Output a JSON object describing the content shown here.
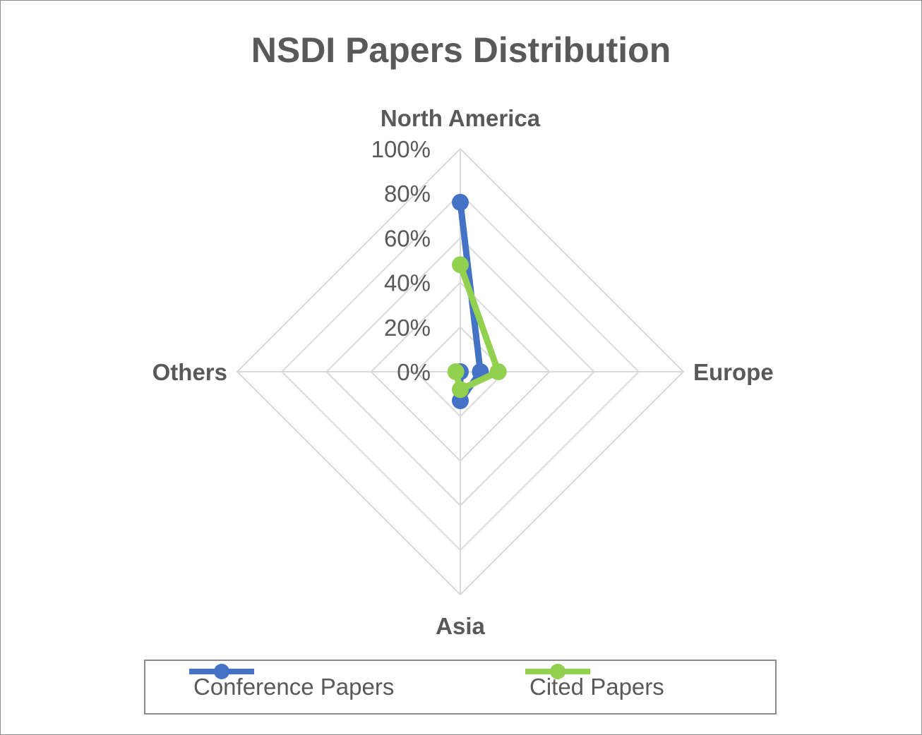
{
  "chart_data": {
    "type": "radar",
    "title": "NSDI Papers Distribution",
    "categories": [
      "North America",
      "Europe",
      "Asia",
      "Others"
    ],
    "tick_labels": [
      "0%",
      "20%",
      "40%",
      "60%",
      "80%",
      "100%"
    ],
    "rlim": [
      0,
      100
    ],
    "grid": true,
    "legend_position": "bottom",
    "series": [
      {
        "name": "Conference Papers",
        "color": "#4472c4",
        "values": [
          76,
          9,
          13,
          0
        ]
      },
      {
        "name": "Cited Papers",
        "color": "#92d050",
        "values": [
          48,
          17,
          8,
          2
        ]
      }
    ]
  }
}
